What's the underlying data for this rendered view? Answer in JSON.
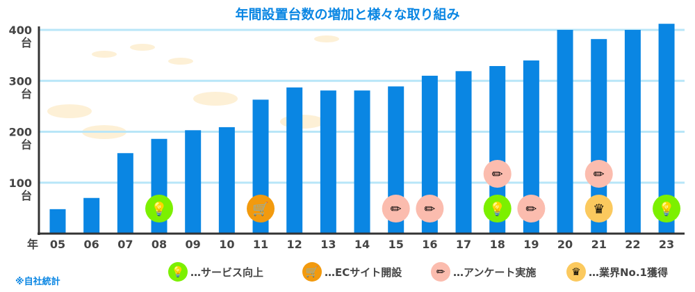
{
  "chart_data": {
    "type": "bar",
    "title": "年間設置台数の増加と様々な取り組み",
    "xlabel": "年",
    "ylabel": "",
    "ylim": [
      0,
      400
    ],
    "yticks": [
      {
        "value": 100,
        "label": "100",
        "unit": "台"
      },
      {
        "value": 200,
        "label": "200",
        "unit": "台"
      },
      {
        "value": 300,
        "label": "300",
        "unit": "台"
      },
      {
        "value": 400,
        "label": "400",
        "unit": "台"
      }
    ],
    "grid": true,
    "categories": [
      "05",
      "06",
      "07",
      "08",
      "09",
      "10",
      "11",
      "12",
      "13",
      "14",
      "15",
      "16",
      "17",
      "18",
      "19",
      "20",
      "21",
      "22",
      "23"
    ],
    "values": [
      48,
      70,
      158,
      186,
      203,
      209,
      263,
      287,
      281,
      281,
      289,
      310,
      319,
      329,
      340,
      400,
      382,
      400,
      412
    ],
    "bar_color": "#0a86e3",
    "grid_color": "#b8e6f8",
    "markers": [
      {
        "category": "08",
        "type": "service"
      },
      {
        "category": "11",
        "type": "ec"
      },
      {
        "category": "15",
        "type": "survey"
      },
      {
        "category": "16",
        "type": "survey"
      },
      {
        "category": "18",
        "type": "service"
      },
      {
        "category": "18",
        "type": "survey",
        "row": 2
      },
      {
        "category": "19",
        "type": "survey"
      },
      {
        "category": "21",
        "type": "award"
      },
      {
        "category": "21",
        "type": "survey",
        "row": 2
      },
      {
        "category": "23",
        "type": "service"
      }
    ],
    "legend": [
      {
        "type": "service",
        "label": "…サービス向上",
        "icon": "lightbulb-icon",
        "color": "#7cf000"
      },
      {
        "type": "ec",
        "label": "…ECサイト開設",
        "icon": "cart-icon",
        "color": "#f29a0e"
      },
      {
        "type": "survey",
        "label": "…アンケート実施",
        "icon": "pencil-icon",
        "color": "#fbbcae"
      },
      {
        "type": "award",
        "label": "…業界No.1獲得",
        "icon": "crown-icon",
        "color": "#fbc95e"
      }
    ],
    "legend_placement": "bottom",
    "note": "※自社統計"
  }
}
